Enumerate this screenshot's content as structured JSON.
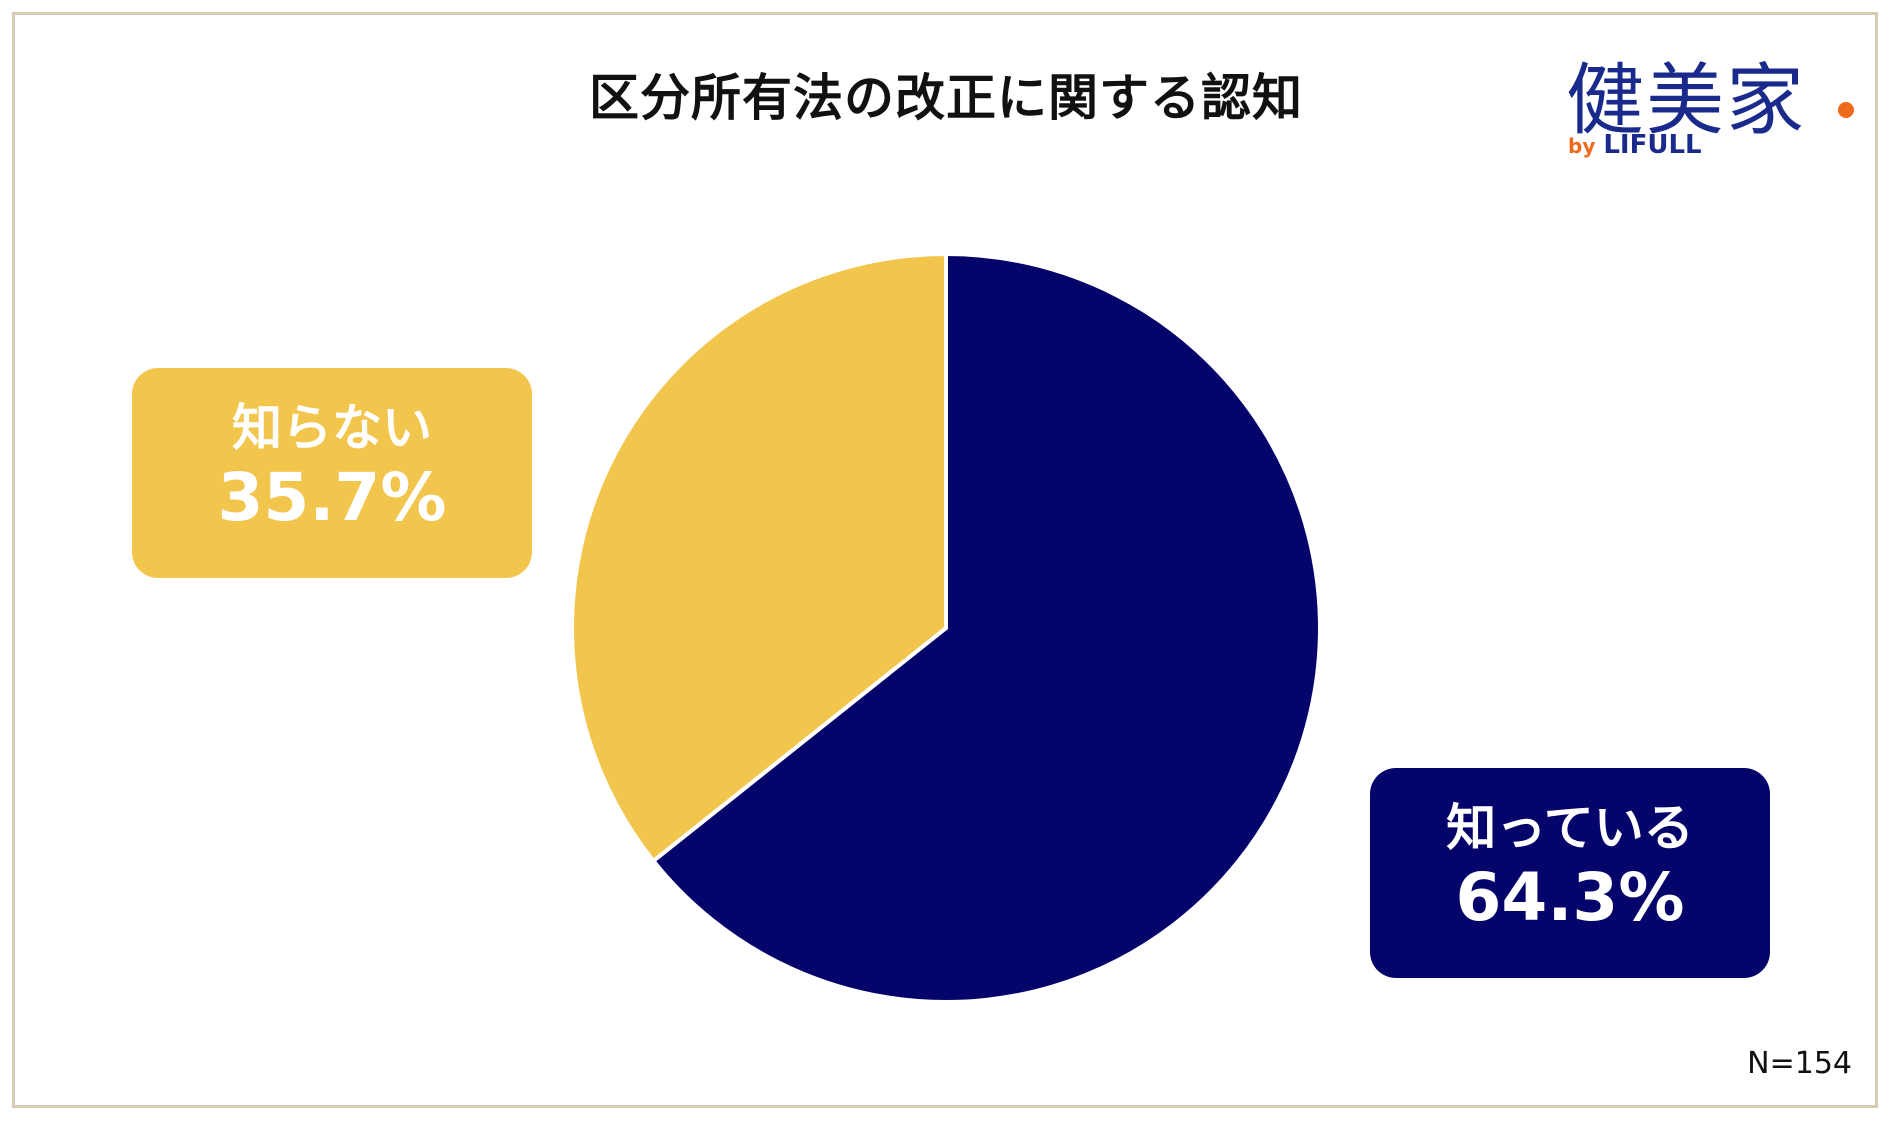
{
  "chart_data": {
    "type": "pie",
    "title": "区分所有法の改正に関する認知",
    "slices": [
      {
        "label": "知っている",
        "value": 64.3,
        "display": "64.3%",
        "color": "#04046b"
      },
      {
        "label": "知らない",
        "value": 35.7,
        "display": "35.7%",
        "color": "#f2c54d"
      }
    ],
    "start": "12 o'clock, clockwise",
    "note": "N=154"
  },
  "logo": {
    "main": "健美家",
    "by": "by",
    "sub": "LIFULL",
    "color": "#1a2a8c",
    "accent": "#f06a1e"
  },
  "colors": {
    "frame": "#d6ccb4",
    "separator": "#ffffff"
  }
}
